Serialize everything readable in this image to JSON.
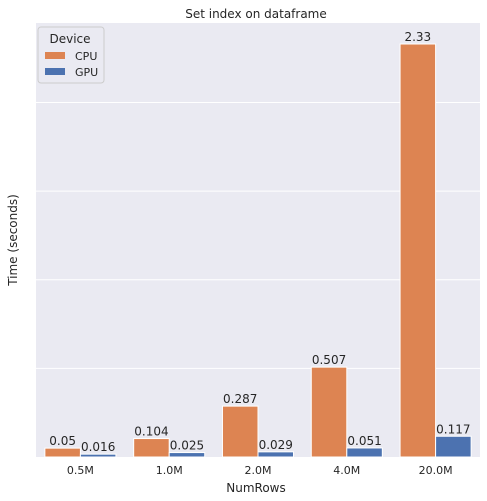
{
  "chart_data": {
    "type": "bar",
    "title": "Set index on dataframe",
    "xlabel": "NumRows",
    "ylabel": "Time (seconds)",
    "categories": [
      "0.5M",
      "1.0M",
      "2.0M",
      "4.0M",
      "20.0M"
    ],
    "series": [
      {
        "name": "CPU",
        "values": [
          0.05,
          0.104,
          0.287,
          0.507,
          2.33
        ],
        "labels": [
          "0.05",
          "0.104",
          "0.287",
          "0.507",
          "2.33"
        ],
        "color": "#dd8452"
      },
      {
        "name": "GPU",
        "values": [
          0.016,
          0.025,
          0.029,
          0.051,
          0.117
        ],
        "labels": [
          "0.016",
          "0.025",
          "0.029",
          "0.051",
          "0.117"
        ],
        "color": "#4c72b0"
      }
    ],
    "ylim": [
      0,
      2.33
    ],
    "grid": true,
    "legend": {
      "title": "Device",
      "placement": "top-left"
    }
  },
  "colors": {
    "plot_background": "#eaeaf2",
    "grid": "#ffffff"
  }
}
